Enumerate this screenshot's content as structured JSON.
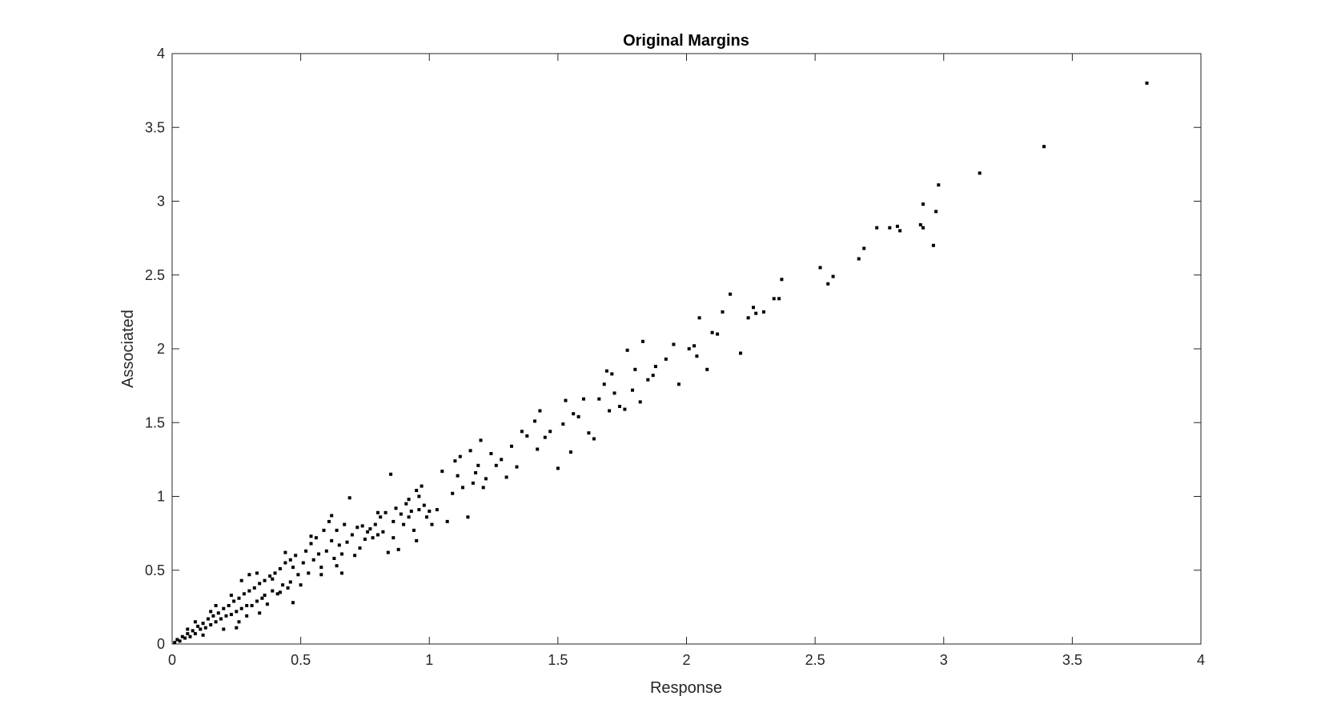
{
  "chart_data": {
    "type": "scatter",
    "title": "Original Margins",
    "xlabel": "Response",
    "ylabel": "Associated",
    "xlim": [
      0,
      4
    ],
    "ylim": [
      0,
      4
    ],
    "xticks": [
      0,
      0.5,
      1,
      1.5,
      2,
      2.5,
      3,
      3.5,
      4
    ],
    "yticks": [
      0,
      0.5,
      1,
      1.5,
      2,
      2.5,
      3,
      3.5,
      4
    ],
    "xticklabels": [
      "0",
      "0.5",
      "1",
      "1.5",
      "2",
      "2.5",
      "3",
      "3.5",
      "4"
    ],
    "yticklabels": [
      "0",
      "0.5",
      "1",
      "1.5",
      "2",
      "2.5",
      "3",
      "3.5",
      "4"
    ],
    "grid": false,
    "marker_color": "#000000",
    "series": [
      {
        "points": [
          [
            0.01,
            0.01
          ],
          [
            0.02,
            0.03
          ],
          [
            0.03,
            0.02
          ],
          [
            0.04,
            0.05
          ],
          [
            0.05,
            0.04
          ],
          [
            0.06,
            0.07
          ],
          [
            0.07,
            0.05
          ],
          [
            0.08,
            0.09
          ],
          [
            0.09,
            0.07
          ],
          [
            0.1,
            0.12
          ],
          [
            0.11,
            0.1
          ],
          [
            0.12,
            0.14
          ],
          [
            0.13,
            0.11
          ],
          [
            0.14,
            0.17
          ],
          [
            0.15,
            0.13
          ],
          [
            0.16,
            0.19
          ],
          [
            0.17,
            0.15
          ],
          [
            0.18,
            0.21
          ],
          [
            0.19,
            0.17
          ],
          [
            0.2,
            0.24
          ],
          [
            0.21,
            0.19
          ],
          [
            0.22,
            0.26
          ],
          [
            0.23,
            0.2
          ],
          [
            0.24,
            0.29
          ],
          [
            0.25,
            0.22
          ],
          [
            0.26,
            0.31
          ],
          [
            0.27,
            0.24
          ],
          [
            0.28,
            0.34
          ],
          [
            0.29,
            0.26
          ],
          [
            0.3,
            0.36
          ],
          [
            0.12,
            0.06
          ],
          [
            0.09,
            0.15
          ],
          [
            0.2,
            0.1
          ],
          [
            0.17,
            0.26
          ],
          [
            0.26,
            0.15
          ],
          [
            0.23,
            0.33
          ],
          [
            0.27,
            0.43
          ],
          [
            0.25,
            0.11
          ],
          [
            0.15,
            0.22
          ],
          [
            0.06,
            0.1
          ],
          [
            0.31,
            0.26
          ],
          [
            0.32,
            0.38
          ],
          [
            0.33,
            0.29
          ],
          [
            0.34,
            0.41
          ],
          [
            0.35,
            0.31
          ],
          [
            0.36,
            0.43
          ],
          [
            0.37,
            0.27
          ],
          [
            0.38,
            0.46
          ],
          [
            0.39,
            0.36
          ],
          [
            0.4,
            0.48
          ],
          [
            0.41,
            0.34
          ],
          [
            0.42,
            0.51
          ],
          [
            0.43,
            0.4
          ],
          [
            0.44,
            0.55
          ],
          [
            0.45,
            0.38
          ],
          [
            0.46,
            0.57
          ],
          [
            0.47,
            0.28
          ],
          [
            0.48,
            0.6
          ],
          [
            0.49,
            0.47
          ],
          [
            0.5,
            0.4
          ],
          [
            0.3,
            0.47
          ],
          [
            0.34,
            0.21
          ],
          [
            0.44,
            0.62
          ],
          [
            0.47,
            0.52
          ],
          [
            0.36,
            0.33
          ],
          [
            0.42,
            0.35
          ],
          [
            0.29,
            0.19
          ],
          [
            0.33,
            0.48
          ],
          [
            0.39,
            0.44
          ],
          [
            0.46,
            0.42
          ],
          [
            0.51,
            0.55
          ],
          [
            0.52,
            0.63
          ],
          [
            0.53,
            0.48
          ],
          [
            0.54,
            0.68
          ],
          [
            0.55,
            0.57
          ],
          [
            0.56,
            0.72
          ],
          [
            0.57,
            0.61
          ],
          [
            0.58,
            0.52
          ],
          [
            0.59,
            0.77
          ],
          [
            0.6,
            0.63
          ],
          [
            0.61,
            0.83
          ],
          [
            0.62,
            0.7
          ],
          [
            0.63,
            0.58
          ],
          [
            0.64,
            0.77
          ],
          [
            0.65,
            0.67
          ],
          [
            0.66,
            0.48
          ],
          [
            0.67,
            0.81
          ],
          [
            0.68,
            0.69
          ],
          [
            0.69,
            0.99
          ],
          [
            0.7,
            0.74
          ],
          [
            0.71,
            0.6
          ],
          [
            0.72,
            0.79
          ],
          [
            0.73,
            0.65
          ],
          [
            0.74,
            0.8
          ],
          [
            0.75,
            0.71
          ],
          [
            0.54,
            0.73
          ],
          [
            0.58,
            0.47
          ],
          [
            0.62,
            0.87
          ],
          [
            0.66,
            0.61
          ],
          [
            0.64,
            0.53
          ],
          [
            0.76,
            0.76
          ],
          [
            0.77,
            0.78
          ],
          [
            0.78,
            0.72
          ],
          [
            0.79,
            0.81
          ],
          [
            0.8,
            0.74
          ],
          [
            0.81,
            0.86
          ],
          [
            0.82,
            0.76
          ],
          [
            0.83,
            0.89
          ],
          [
            0.84,
            0.62
          ],
          [
            0.85,
            1.15
          ],
          [
            0.86,
            0.83
          ],
          [
            0.87,
            0.92
          ],
          [
            0.88,
            0.64
          ],
          [
            0.89,
            0.88
          ],
          [
            0.9,
            0.81
          ],
          [
            0.91,
            0.95
          ],
          [
            0.92,
            0.86
          ],
          [
            0.93,
            0.9
          ],
          [
            0.94,
            0.77
          ],
          [
            0.95,
            1.04
          ],
          [
            0.96,
            0.91
          ],
          [
            0.97,
            1.07
          ],
          [
            0.98,
            0.94
          ],
          [
            0.99,
            0.86
          ],
          [
            1.0,
            0.9
          ],
          [
            0.86,
            0.72
          ],
          [
            0.8,
            0.89
          ],
          [
            0.92,
            0.98
          ],
          [
            0.95,
            0.7
          ],
          [
            0.96,
            1.0
          ],
          [
            1.01,
            0.81
          ],
          [
            1.03,
            0.91
          ],
          [
            1.05,
            1.17
          ],
          [
            1.07,
            0.83
          ],
          [
            1.09,
            1.02
          ],
          [
            1.1,
            1.24
          ],
          [
            1.11,
            1.14
          ],
          [
            1.12,
            1.27
          ],
          [
            1.13,
            1.06
          ],
          [
            1.15,
            0.86
          ],
          [
            1.16,
            1.31
          ],
          [
            1.17,
            1.09
          ],
          [
            1.18,
            1.16
          ],
          [
            1.19,
            1.21
          ],
          [
            1.2,
            1.38
          ],
          [
            1.21,
            1.06
          ],
          [
            1.22,
            1.12
          ],
          [
            1.24,
            1.29
          ],
          [
            1.26,
            1.21
          ],
          [
            1.28,
            1.25
          ],
          [
            1.3,
            1.13
          ],
          [
            1.32,
            1.34
          ],
          [
            1.34,
            1.2
          ],
          [
            1.36,
            1.44
          ],
          [
            1.38,
            1.41
          ],
          [
            1.41,
            1.51
          ],
          [
            1.42,
            1.32
          ],
          [
            1.43,
            1.58
          ],
          [
            1.45,
            1.4
          ],
          [
            1.47,
            1.44
          ],
          [
            1.5,
            1.19
          ],
          [
            1.52,
            1.49
          ],
          [
            1.53,
            1.65
          ],
          [
            1.55,
            1.3
          ],
          [
            1.56,
            1.56
          ],
          [
            1.58,
            1.54
          ],
          [
            1.6,
            1.66
          ],
          [
            1.62,
            1.43
          ],
          [
            1.64,
            1.39
          ],
          [
            1.66,
            1.66
          ],
          [
            1.68,
            1.76
          ],
          [
            1.69,
            1.85
          ],
          [
            1.7,
            1.58
          ],
          [
            1.71,
            1.83
          ],
          [
            1.72,
            1.7
          ],
          [
            1.74,
            1.61
          ],
          [
            1.76,
            1.59
          ],
          [
            1.77,
            1.99
          ],
          [
            1.79,
            1.72
          ],
          [
            1.8,
            1.86
          ],
          [
            1.82,
            1.64
          ],
          [
            1.83,
            2.05
          ],
          [
            1.85,
            1.79
          ],
          [
            1.87,
            1.82
          ],
          [
            1.88,
            1.88
          ],
          [
            1.92,
            1.93
          ],
          [
            1.95,
            2.03
          ],
          [
            1.97,
            1.76
          ],
          [
            2.01,
            2.0
          ],
          [
            2.03,
            2.02
          ],
          [
            2.04,
            1.95
          ],
          [
            2.05,
            2.21
          ],
          [
            2.08,
            1.86
          ],
          [
            2.1,
            2.11
          ],
          [
            2.12,
            2.1
          ],
          [
            2.14,
            2.25
          ],
          [
            2.17,
            2.37
          ],
          [
            2.21,
            1.97
          ],
          [
            2.24,
            2.21
          ],
          [
            2.26,
            2.28
          ],
          [
            2.27,
            2.24
          ],
          [
            2.3,
            2.25
          ],
          [
            2.34,
            2.34
          ],
          [
            2.36,
            2.34
          ],
          [
            2.37,
            2.47
          ],
          [
            2.52,
            2.55
          ],
          [
            2.55,
            2.44
          ],
          [
            2.57,
            2.49
          ],
          [
            2.67,
            2.61
          ],
          [
            2.69,
            2.68
          ],
          [
            2.74,
            2.82
          ],
          [
            2.79,
            2.82
          ],
          [
            2.82,
            2.83
          ],
          [
            2.83,
            2.8
          ],
          [
            2.91,
            2.84
          ],
          [
            2.92,
            2.82
          ],
          [
            2.92,
            2.98
          ],
          [
            2.96,
            2.7
          ],
          [
            2.97,
            2.93
          ],
          [
            2.98,
            3.11
          ],
          [
            3.14,
            3.19
          ],
          [
            3.39,
            3.37
          ],
          [
            3.79,
            3.8
          ]
        ]
      }
    ]
  }
}
